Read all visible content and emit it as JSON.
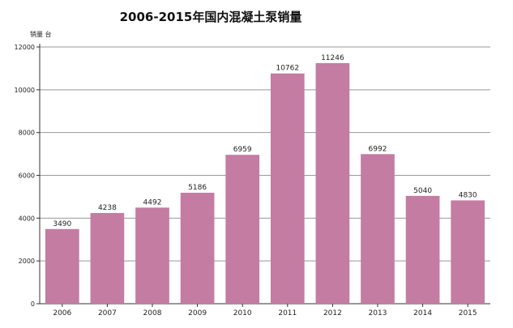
{
  "chart_data": {
    "type": "bar",
    "title": "2006-2015年国内混凝土泵销量",
    "ylabel": "销量 台",
    "xlabel": "",
    "categories": [
      "2006",
      "2007",
      "2008",
      "2009",
      "2010",
      "2011",
      "2012",
      "2013",
      "2014",
      "2015"
    ],
    "values": [
      3490,
      4238,
      4492,
      5186,
      6959,
      10762,
      11246,
      6992,
      5040,
      4830
    ],
    "ylim": [
      0,
      12000
    ],
    "yticks": [
      0,
      2000,
      4000,
      6000,
      8000,
      10000,
      12000
    ],
    "grid": true,
    "legend": "none",
    "bar_color": "#c47ca3",
    "grid_color": "#999999"
  }
}
